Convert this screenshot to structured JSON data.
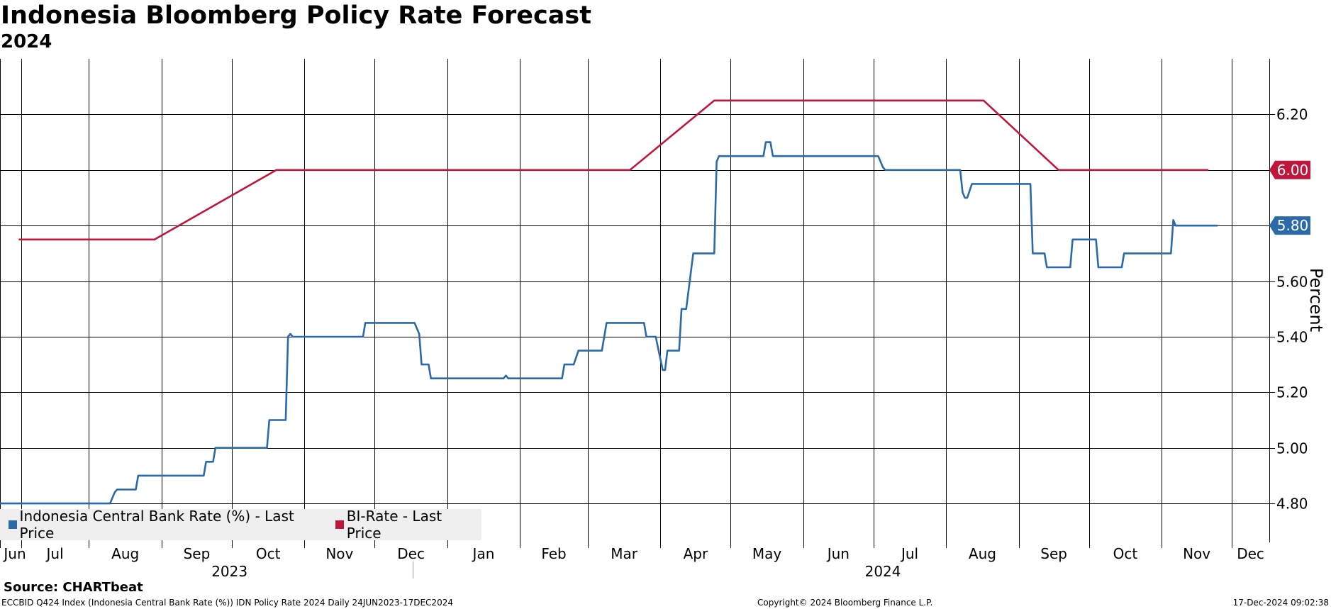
{
  "chart_data": {
    "type": "line",
    "title": "Indonesia Bloomberg Policy Rate Forecast",
    "subtitle": "2024",
    "ylabel": "Percent",
    "ylim": [
      4.66,
      6.4
    ],
    "yticks": [
      "6.20",
      "6.00",
      "5.80",
      "5.60",
      "5.40",
      "5.20",
      "5.00",
      "4.80"
    ],
    "xlim": [
      "2023-06-24",
      "2024-12-17"
    ],
    "month_ticks": [
      {
        "date": "2023-06-24",
        "label": "Jun"
      },
      {
        "date": "2023-07-03",
        "label": "Jul"
      },
      {
        "date": "2023-08-01",
        "label": "Aug"
      },
      {
        "date": "2023-09-01",
        "label": "Sep"
      },
      {
        "date": "2023-10-01",
        "label": "Oct"
      },
      {
        "date": "2023-11-01",
        "label": "Nov"
      },
      {
        "date": "2023-12-01",
        "label": "Dec"
      },
      {
        "date": "2024-01-01",
        "label": "Jan"
      },
      {
        "date": "2024-02-01",
        "label": "Feb"
      },
      {
        "date": "2024-03-01",
        "label": "Mar"
      },
      {
        "date": "2024-04-01",
        "label": "Apr"
      },
      {
        "date": "2024-05-01",
        "label": "May"
      },
      {
        "date": "2024-06-01",
        "label": "Jun"
      },
      {
        "date": "2024-07-01",
        "label": "Jul"
      },
      {
        "date": "2024-08-01",
        "label": "Aug"
      },
      {
        "date": "2024-09-01",
        "label": "Sep"
      },
      {
        "date": "2024-10-01",
        "label": "Oct"
      },
      {
        "date": "2024-11-01",
        "label": "Nov"
      },
      {
        "date": "2024-12-01",
        "label": "Dec"
      }
    ],
    "year_labels": [
      {
        "date": "2023-09-30",
        "label": "2023"
      },
      {
        "date": "2024-07-05",
        "label": "2024"
      }
    ],
    "grid": true,
    "legend_position": "bottom-left",
    "series": [
      {
        "name": "Indonesia Central Bank Rate (%) - Last Price",
        "color": "#2a6aa9",
        "last_value_label": "5.80",
        "points": [
          [
            "2023-06-24",
            4.8
          ],
          [
            "2023-08-10",
            4.8
          ],
          [
            "2023-08-12",
            4.84
          ],
          [
            "2023-08-13",
            4.85
          ],
          [
            "2023-08-21",
            4.85
          ],
          [
            "2023-08-22",
            4.9
          ],
          [
            "2023-09-19",
            4.9
          ],
          [
            "2023-09-20",
            4.95
          ],
          [
            "2023-09-23",
            4.95
          ],
          [
            "2023-09-24",
            5.0
          ],
          [
            "2023-10-16",
            5.0
          ],
          [
            "2023-10-17",
            5.1
          ],
          [
            "2023-10-24",
            5.1
          ],
          [
            "2023-10-25",
            5.4
          ],
          [
            "2023-10-26",
            5.41
          ],
          [
            "2023-10-27",
            5.4
          ],
          [
            "2023-11-26",
            5.4
          ],
          [
            "2023-11-27",
            5.45
          ],
          [
            "2023-12-18",
            5.45
          ],
          [
            "2023-12-20",
            5.41
          ],
          [
            "2023-12-21",
            5.3
          ],
          [
            "2023-12-24",
            5.3
          ],
          [
            "2023-12-25",
            5.25
          ],
          [
            "2024-01-25",
            5.25
          ],
          [
            "2024-01-26",
            5.26
          ],
          [
            "2024-01-27",
            5.25
          ],
          [
            "2024-02-19",
            5.25
          ],
          [
            "2024-02-20",
            5.3
          ],
          [
            "2024-02-24",
            5.3
          ],
          [
            "2024-02-26",
            5.35
          ],
          [
            "2024-03-07",
            5.35
          ],
          [
            "2024-03-09",
            5.45
          ],
          [
            "2024-03-25",
            5.45
          ],
          [
            "2024-03-26",
            5.4
          ],
          [
            "2024-03-30",
            5.4
          ],
          [
            "2024-04-02",
            5.28
          ],
          [
            "2024-04-03",
            5.28
          ],
          [
            "2024-04-04",
            5.35
          ],
          [
            "2024-04-09",
            5.35
          ],
          [
            "2024-04-10",
            5.5
          ],
          [
            "2024-04-12",
            5.5
          ],
          [
            "2024-04-15",
            5.7
          ],
          [
            "2024-04-24",
            5.7
          ],
          [
            "2024-04-25",
            6.03
          ],
          [
            "2024-04-26",
            6.05
          ],
          [
            "2024-05-15",
            6.05
          ],
          [
            "2024-05-16",
            6.1
          ],
          [
            "2024-05-18",
            6.1
          ],
          [
            "2024-05-19",
            6.05
          ],
          [
            "2024-07-03",
            6.05
          ],
          [
            "2024-07-05",
            6.01
          ],
          [
            "2024-07-06",
            6.0
          ],
          [
            "2024-08-07",
            6.0
          ],
          [
            "2024-08-08",
            5.92
          ],
          [
            "2024-08-09",
            5.9
          ],
          [
            "2024-08-10",
            5.9
          ],
          [
            "2024-08-12",
            5.95
          ],
          [
            "2024-09-06",
            5.95
          ],
          [
            "2024-09-07",
            5.7
          ],
          [
            "2024-09-12",
            5.7
          ],
          [
            "2024-09-13",
            5.65
          ],
          [
            "2024-09-23",
            5.65
          ],
          [
            "2024-09-24",
            5.75
          ],
          [
            "2024-10-04",
            5.75
          ],
          [
            "2024-10-05",
            5.65
          ],
          [
            "2024-10-15",
            5.65
          ],
          [
            "2024-10-16",
            5.7
          ],
          [
            "2024-11-05",
            5.7
          ],
          [
            "2024-11-06",
            5.82
          ],
          [
            "2024-11-07",
            5.8
          ],
          [
            "2024-11-25",
            5.8
          ]
        ]
      },
      {
        "name": "BI-Rate - Last Price",
        "color": "#c0163c",
        "last_value_label": "6.00",
        "points": [
          [
            "2023-07-02",
            5.75
          ],
          [
            "2023-08-29",
            5.75
          ],
          [
            "2023-10-20",
            6.0
          ],
          [
            "2024-03-19",
            6.0
          ],
          [
            "2024-04-24",
            6.25
          ],
          [
            "2024-08-17",
            6.25
          ],
          [
            "2024-09-18",
            6.0
          ],
          [
            "2024-11-21",
            6.0
          ]
        ]
      }
    ]
  },
  "legend": {
    "items": [
      {
        "label": "Indonesia Central Bank Rate (%) - Last Price",
        "color": "#2a6aa9"
      },
      {
        "label": "BI-Rate - Last Price",
        "color": "#c0163c"
      }
    ]
  },
  "source": "Source: CHARTbeat",
  "footer": {
    "left": "ECCBID Q424 Index (Indonesia Central Bank Rate (%)) IDN Policy Rate 2024  Daily 24JUN2023-17DEC2024",
    "middle": "Copyright© 2024 Bloomberg Finance L.P.",
    "right": "17-Dec-2024 09:02:38"
  }
}
